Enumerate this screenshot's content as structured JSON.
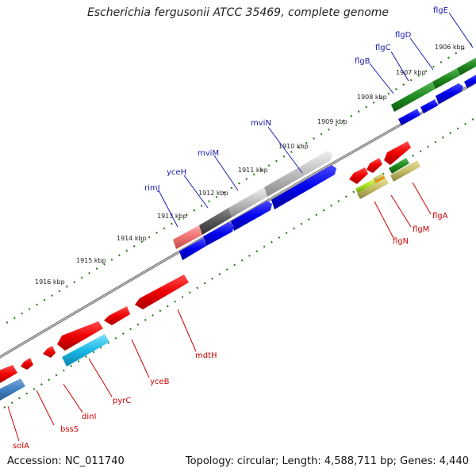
{
  "title": "Escherichia fergusonii ATCC 35469, complete genome",
  "accession": "Accession: NC_011740",
  "summary": "Topology: circular; Length: 4,588,711 bp; Genes: 4,440",
  "colors": {
    "backbone": "#8c8c8c",
    "dots": "#2e7d1e",
    "forward_label": "#1a1ab0",
    "reverse_label": "#cc0000",
    "gene_red": "#e60000",
    "gene_blue": "#0000dd",
    "gene_green": "#1f8a1f",
    "gene_gray": "#b8b8b8",
    "gene_cyan": "#1ab8e6",
    "gene_steel": "#3f7fbf"
  },
  "kbp_ticks": [
    "1906 kbp",
    "1907 kbp",
    "1908 kbp",
    "1909 kbp",
    "1910 kbp",
    "1911 kbp",
    "1912 kbp",
    "1913 kbp",
    "1914 kbp",
    "1915 kbp",
    "1916 kbp"
  ],
  "forward_genes": [
    "flgE",
    "flgD",
    "flgC",
    "flgB",
    "mviN",
    "mviM",
    "yceH",
    "rimJ"
  ],
  "reverse_genes": [
    "flgA",
    "flgM",
    "flgN",
    "mdtH",
    "yceB",
    "pyrC",
    "dinI",
    "bssS",
    "solA"
  ]
}
